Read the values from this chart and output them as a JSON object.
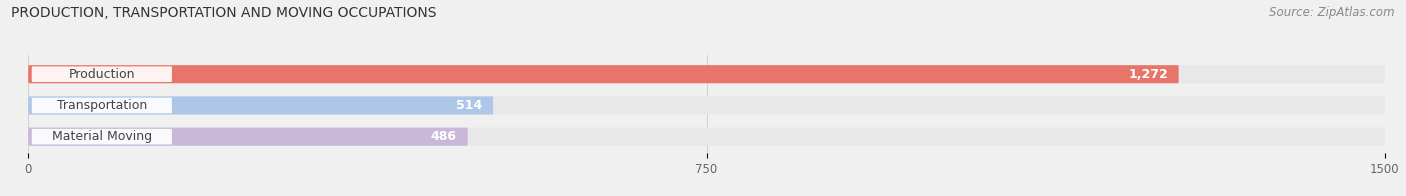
{
  "title": "PRODUCTION, TRANSPORTATION AND MOVING OCCUPATIONS",
  "source": "Source: ZipAtlas.com",
  "categories": [
    "Production",
    "Transportation",
    "Material Moving"
  ],
  "values": [
    1272,
    514,
    486
  ],
  "bar_colors": [
    "#e8756a",
    "#aec6e8",
    "#c9b8d8"
  ],
  "xlim": [
    0,
    1500
  ],
  "xticks": [
    0,
    750,
    1500
  ],
  "bg_color": "#f0f0f0",
  "bar_bg_color": "#e8e8e8",
  "title_fontsize": 10,
  "source_fontsize": 8.5,
  "label_fontsize": 9,
  "value_fontsize": 9
}
